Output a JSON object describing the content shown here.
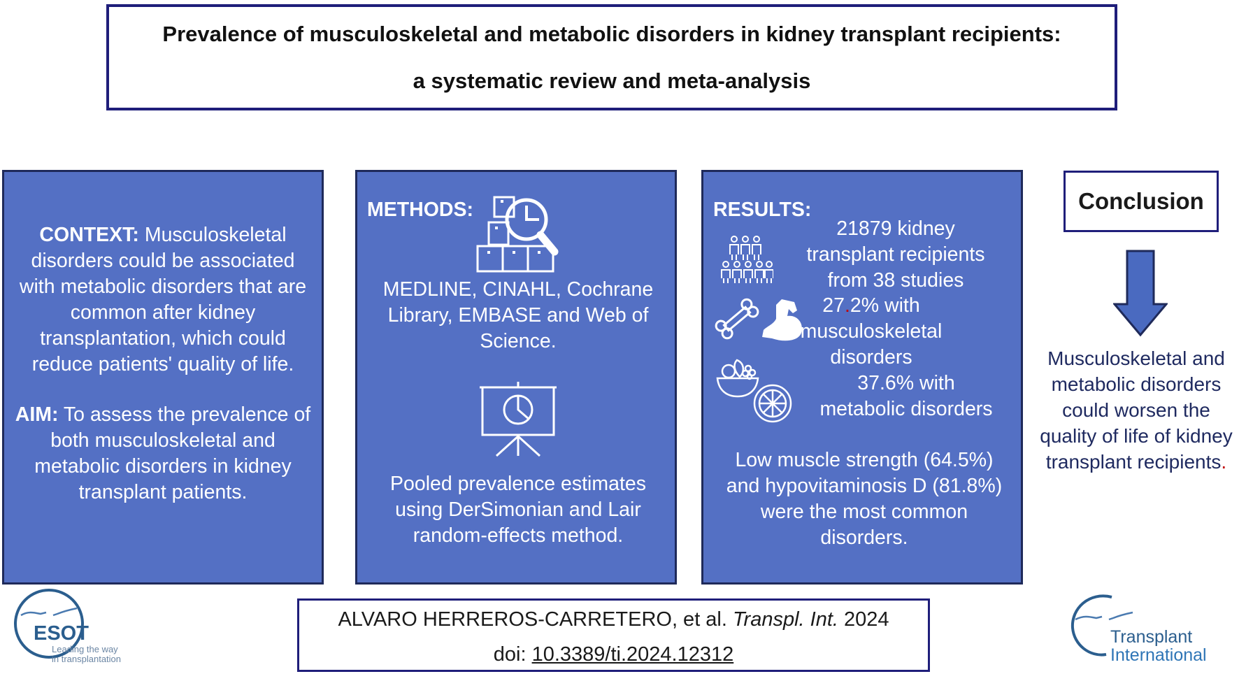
{
  "title": {
    "line1": "Prevalence of musculoskeletal and metabolic disorders in kidney transplant recipients:",
    "line2": "a systematic review and meta-analysis"
  },
  "context": {
    "context_heading": "CONTEXT:",
    "context_text": "Musculoskeletal disorders could be associated with metabolic disorders that are common after kidney transplantation, which could reduce patients' quality of life.",
    "aim_heading": "AIM:",
    "aim_text": "To assess the prevalence of both musculoskeletal and metabolic disorders in kidney transplant patients."
  },
  "methods": {
    "heading": "METHODS:",
    "databases": [
      "MEDLINE, CINAHL, Cochrane",
      "Library, EMBASE and Web of",
      "Science."
    ],
    "analysis": [
      "Pooled prevalence estimates",
      "using DerSimonian and Lair",
      "random-effects method."
    ],
    "icons": [
      "boxes-magnifier-icon",
      "presentation-chart-icon"
    ]
  },
  "results": {
    "heading": "RESULTS:",
    "population": [
      "21879 kidney",
      "transplant recipients",
      "from 38 studies"
    ],
    "msk_pct_int": "27",
    "msk_pct_dot": ".",
    "msk_pct_rest": "2% with",
    "msk_label": [
      "musculoskeletal",
      "disorders"
    ],
    "metabolic": [
      "37.6% with",
      "metabolic disorders"
    ],
    "common": [
      "Low muscle strength (64.5%)",
      "and hypovitaminosis D (81.8%)",
      "were the most common",
      "disorders."
    ],
    "icons": [
      "people-group-icon",
      "bone-icon",
      "muscle-arm-icon",
      "fruit-bowl-icon",
      "citrus-slice-icon"
    ]
  },
  "conclusion": {
    "heading": "Conclusion",
    "text_main": "Musculoskeletal and metabolic disorders could worsen the quality of life of kidney transplant recipients",
    "text_end": ".",
    "icon": "arrow-down-icon"
  },
  "citation": {
    "authors": "ALVARO HERREROS-CARRETERO, et al.",
    "journal": "Transpl. Int.",
    "year": "2024",
    "doi_label": "doi:",
    "doi": "10.3389/ti.2024.12312"
  },
  "logos": {
    "esot_name": "ESOT",
    "esot_tagline": [
      "Leading the way",
      "in transplantation"
    ],
    "ti_name": [
      "Transplant",
      "International"
    ]
  },
  "colors": {
    "panel_fill": "#5470c4",
    "box_border": "#1f1e7a",
    "arrow_fill": "#4a6ac0",
    "accent_red": "#c00000",
    "logo_blue": "#2b5e8e",
    "ti_blue": "#2e75b6"
  }
}
